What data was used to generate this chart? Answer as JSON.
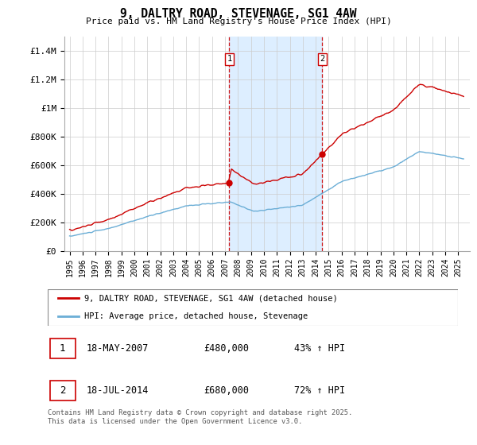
{
  "title": "9, DALTRY ROAD, STEVENAGE, SG1 4AW",
  "subtitle": "Price paid vs. HM Land Registry's House Price Index (HPI)",
  "sale1_date": "18-MAY-2007",
  "sale1_price": 480000,
  "sale1_pct": "43%",
  "sale1_label": "1",
  "sale2_date": "18-JUL-2014",
  "sale2_price": 680000,
  "sale2_pct": "72%",
  "sale2_label": "2",
  "legend_line1": "9, DALTRY ROAD, STEVENAGE, SG1 4AW (detached house)",
  "legend_line2": "HPI: Average price, detached house, Stevenage",
  "footer": "Contains HM Land Registry data © Crown copyright and database right 2025.\nThis data is licensed under the Open Government Licence v3.0.",
  "red_color": "#cc0000",
  "blue_color": "#6baed6",
  "shade_color": "#ddeeff",
  "ylim_max": 1500000,
  "ylabel_ticks": [
    0,
    200000,
    400000,
    600000,
    800000,
    1000000,
    1200000,
    1400000
  ],
  "ylabel_labels": [
    "£0",
    "£200K",
    "£400K",
    "£600K",
    "£800K",
    "£1M",
    "£1.2M",
    "£1.4M"
  ]
}
